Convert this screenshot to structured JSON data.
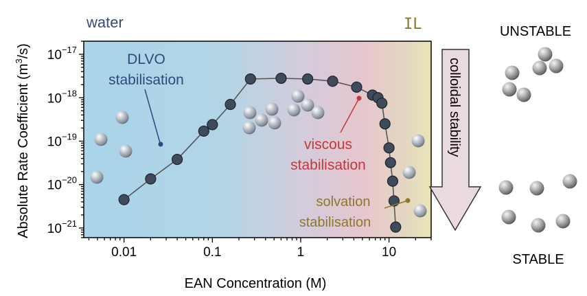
{
  "colors": {
    "water_region": "#a9d4ea",
    "ethanol_region": "#e3c4cd",
    "il_region": "#e8e4b8",
    "data_marker": "#3f4a5a",
    "fit_line": "#555555",
    "dlvo_color": "#2e4a7c",
    "viscous_color": "#c2383c",
    "solvation_color": "#8a7a28",
    "water_color": "#3a4a78",
    "il_color": "#8a7a28",
    "arrow_fill": "#ead9df"
  },
  "chart_data": {
    "type": "scatter",
    "xlabel": "EAN Concentration (M)",
    "ylabel_main": "Absolute Rate Coefficient (m",
    "ylabel_sup": "3",
    "ylabel_end": "/s)",
    "xscale": "log",
    "yscale": "log",
    "xlim": [
      0.0035,
      30
    ],
    "ylim": [
      6e-22,
      2e-17
    ],
    "x_ticks": [
      {
        "value": 0.01,
        "label": "0.01"
      },
      {
        "value": 0.1,
        "label": "0.1"
      },
      {
        "value": 1,
        "label": "1"
      },
      {
        "value": 10,
        "label": "10"
      }
    ],
    "y_ticks": [
      {
        "value": 1e-17,
        "base": "10",
        "exp": "−17"
      },
      {
        "value": 1e-18,
        "base": "10",
        "exp": "−18"
      },
      {
        "value": 1e-19,
        "base": "10",
        "exp": "−19"
      },
      {
        "value": 1e-20,
        "base": "10",
        "exp": "−20"
      },
      {
        "value": 1e-21,
        "base": "10",
        "exp": "−21"
      }
    ],
    "series": [
      {
        "x": [
          0.01,
          0.02,
          0.04,
          0.08,
          0.1,
          0.16,
          0.27,
          0.6,
          1.2,
          2.3,
          4.3,
          6.5,
          7.5,
          8.3,
          9.0,
          10.0,
          10.4,
          11.0,
          11.4,
          11.9
        ],
        "y": [
          4.5e-21,
          1.35e-20,
          3.8e-20,
          1.7e-19,
          2.4e-19,
          7e-19,
          2.7e-18,
          2.8e-18,
          2.7e-18,
          2.4e-18,
          1.75e-18,
          1.15e-18,
          1e-18,
          7.5e-19,
          2.5e-19,
          7e-20,
          3.2e-20,
          1.2e-20,
          4.2e-21,
          1.05e-21
        ]
      }
    ],
    "annotations": {
      "water": "water",
      "il": "IL",
      "dlvo_line1": "DLVO",
      "dlvo_line2": "stabilisation",
      "viscous_line1": "viscous",
      "viscous_line2": "stabilisation",
      "solvation_line1": "solvation",
      "solvation_line2": "stabilisation"
    }
  },
  "side_panel": {
    "unstable": "UNSTABLE",
    "stable": "STABLE",
    "arrow_label": "colloidal stability"
  }
}
